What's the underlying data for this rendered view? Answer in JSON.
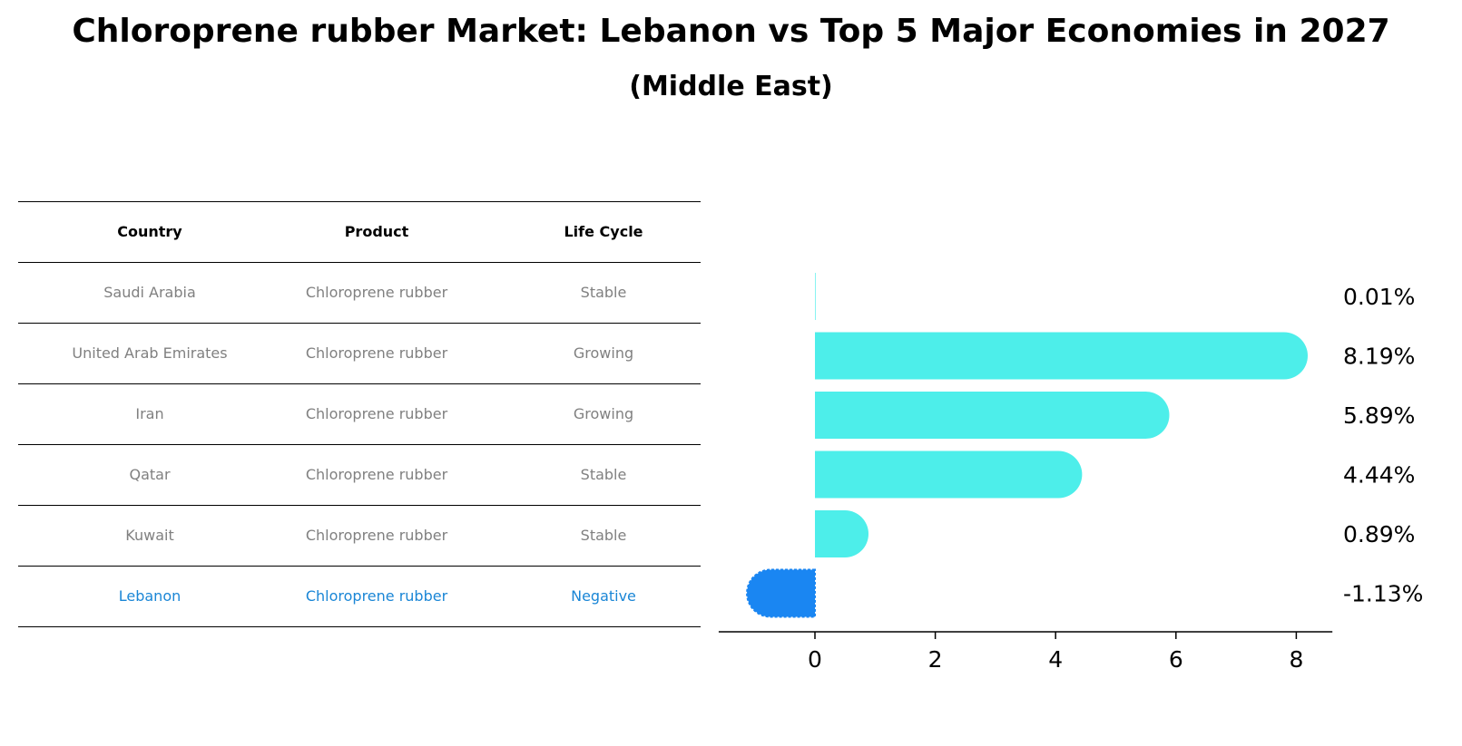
{
  "title": "Chloroprene rubber Market: Lebanon vs Top 5 Major Economies in 2027",
  "subtitle": "(Middle East)",
  "table": {
    "headers": [
      "Country",
      "Product",
      "Life Cycle"
    ],
    "rows": [
      [
        "Saudi Arabia",
        "Chloroprene rubber",
        "Stable"
      ],
      [
        "United Arab Emirates",
        "Chloroprene rubber",
        "Growing"
      ],
      [
        "Iran",
        "Chloroprene rubber",
        "Growing"
      ],
      [
        "Qatar",
        "Chloroprene rubber",
        "Stable"
      ],
      [
        "Kuwait",
        "Chloroprene rubber",
        "Stable"
      ],
      [
        "Lebanon",
        "Chloroprene rubber",
        "Negative"
      ]
    ],
    "highlight_row": 5
  },
  "chart_data": {
    "type": "bar",
    "orientation": "horizontal",
    "categories": [
      "Saudi Arabia",
      "United Arab Emirates",
      "Iran",
      "Qatar",
      "Kuwait",
      "Lebanon"
    ],
    "values": [
      0.01,
      8.19,
      5.89,
      4.44,
      0.89,
      -1.13
    ],
    "value_labels": [
      "0.01%",
      "8.19%",
      "5.89%",
      "4.44%",
      "0.89%",
      "-1.13%"
    ],
    "xticks": [
      0,
      2,
      4,
      6,
      8
    ],
    "xlim": [
      -1.6,
      8.6
    ],
    "grid": false,
    "colors": {
      "default": "#4deeea",
      "highlight": "#1a86f2"
    },
    "highlight_index": 5
  }
}
